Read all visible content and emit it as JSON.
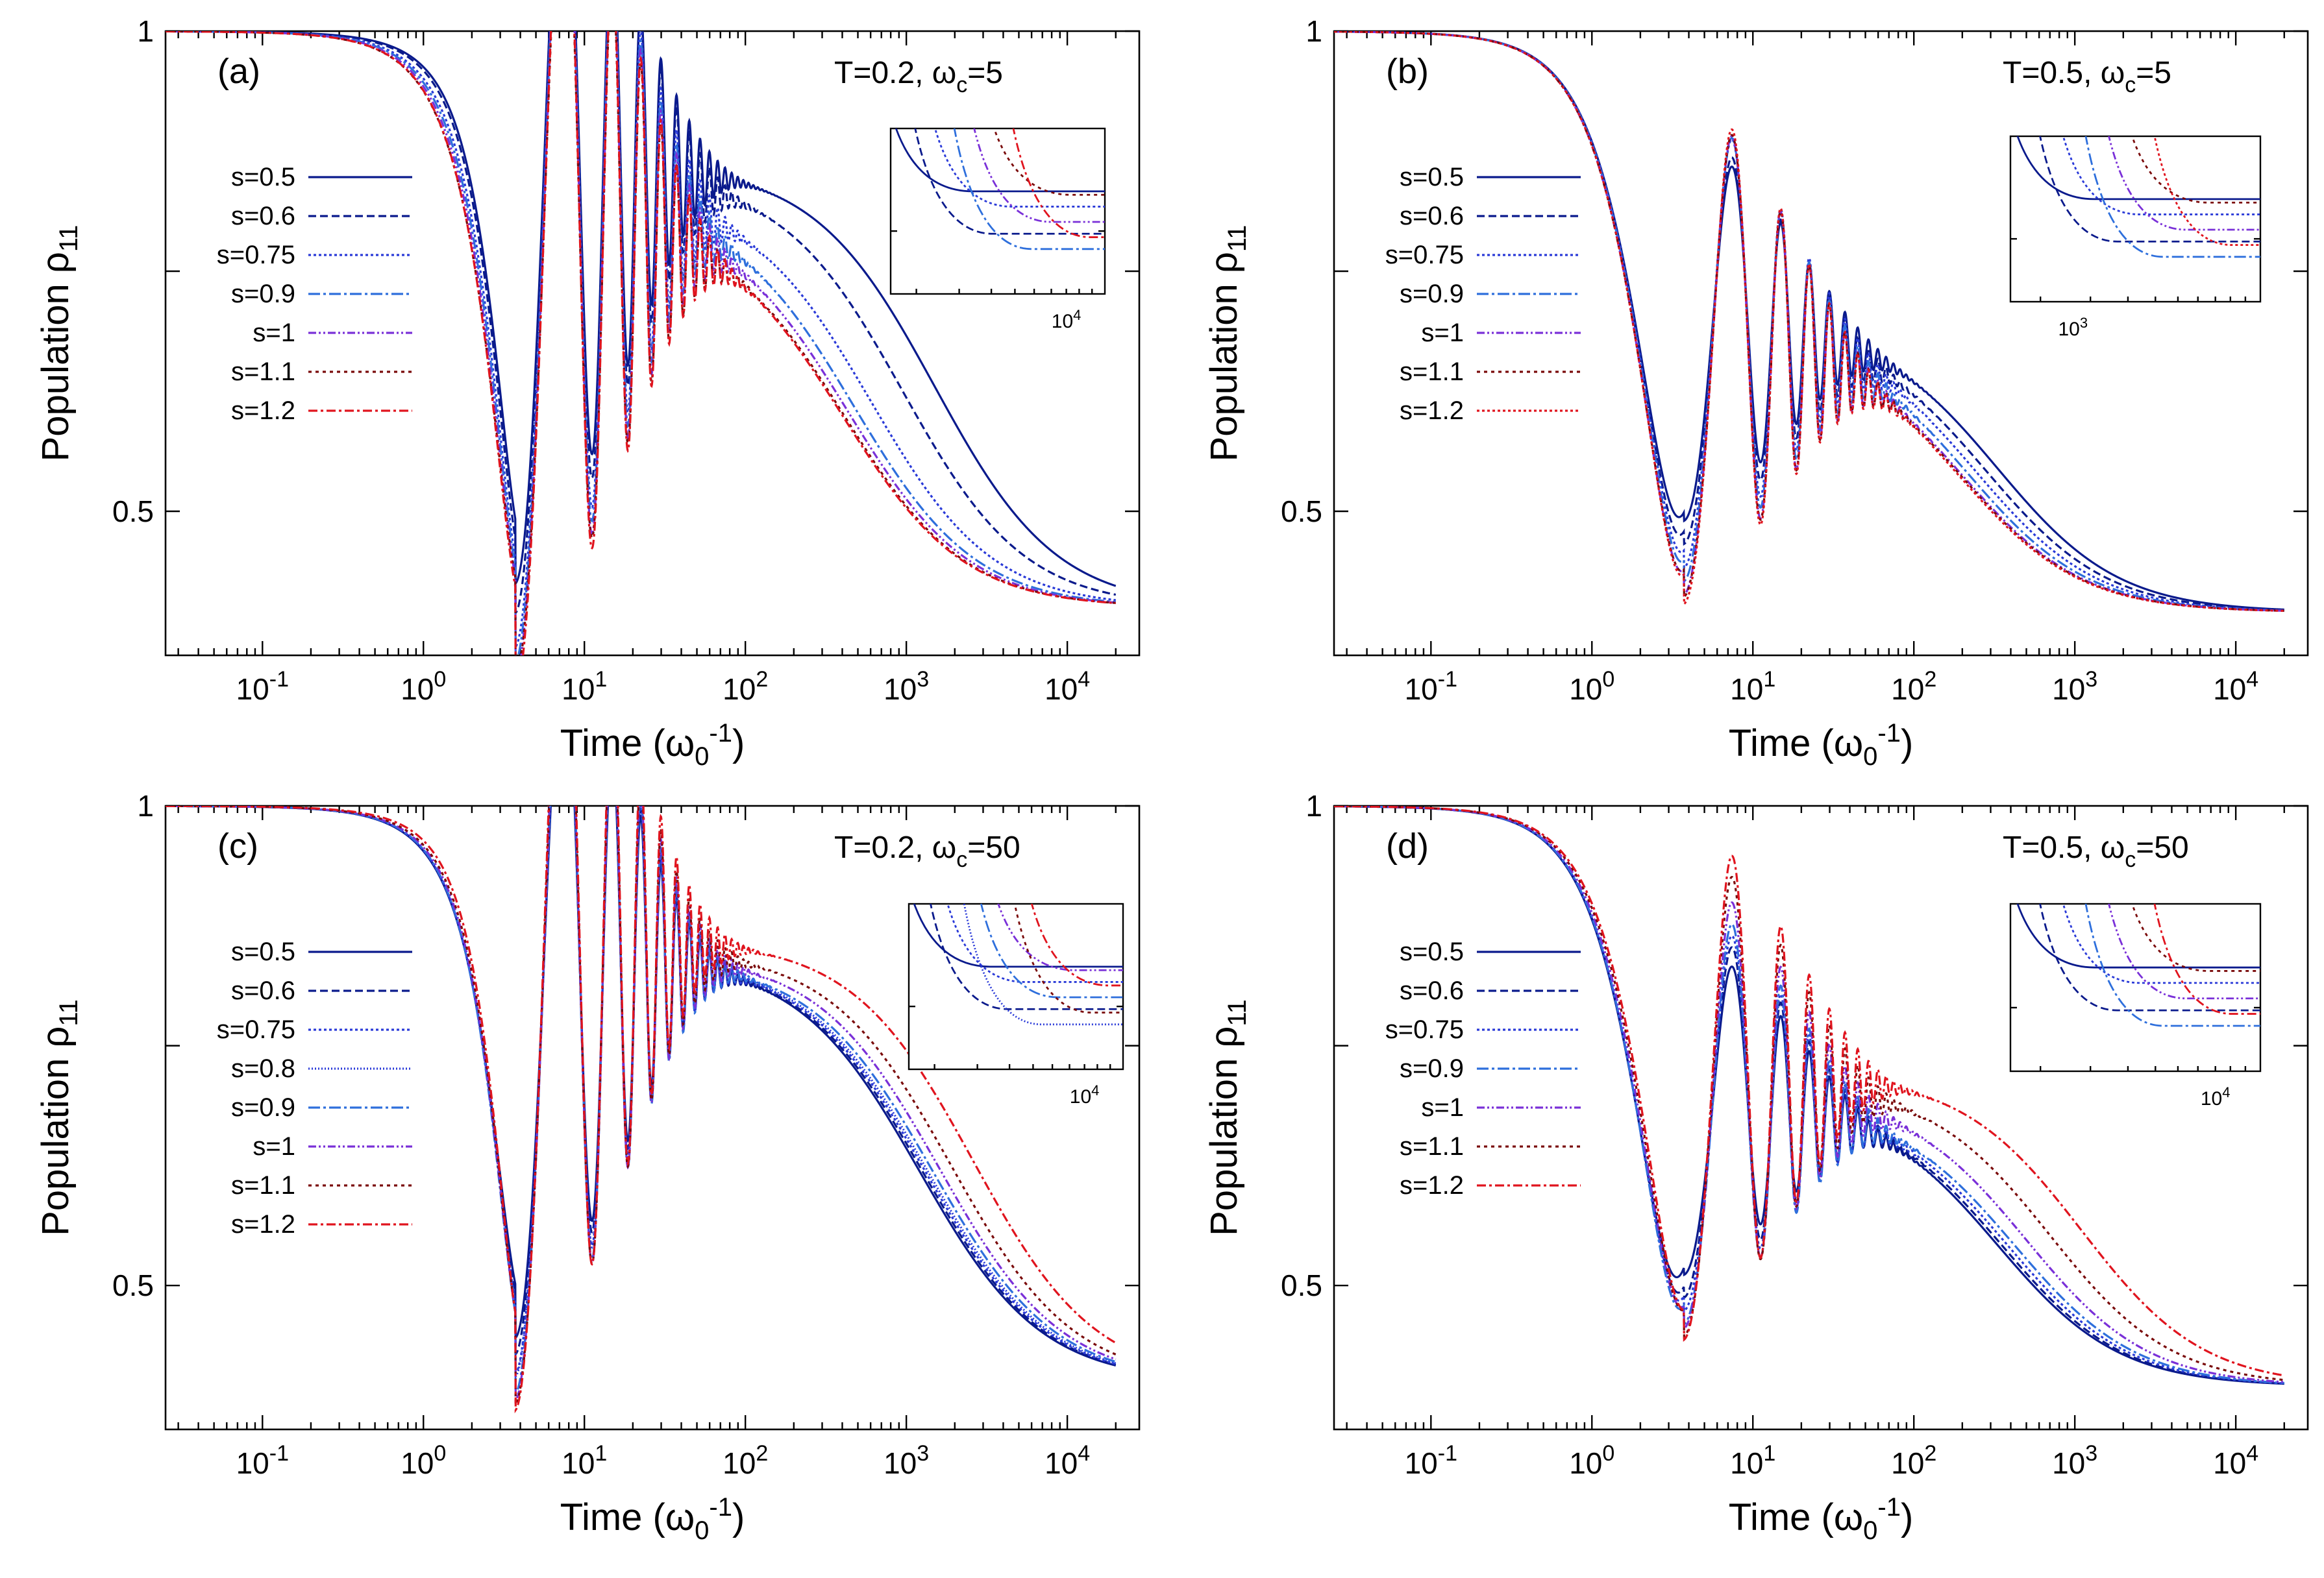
{
  "chart_data": [
    {
      "type": "line",
      "panel": "(a)",
      "annotation": "T=0.2,  ωc=5",
      "ann_T": "T=0.2,",
      "ann_omega": "ω",
      "ann_sub": "c",
      "ann_val": "=5",
      "xlabel": "Time (ω0-1)",
      "ylabel": "Population ρ11",
      "xscale": "log",
      "xlim": [
        0.025,
        28000
      ],
      "ylim": [
        0.35,
        1.0
      ],
      "yticks": [
        "0.5",
        "1"
      ],
      "xticks": [
        "10-1",
        "100",
        "101",
        "102",
        "103",
        "104"
      ],
      "final_value": 0.4,
      "series": [
        {
          "name": "s=0.5",
          "color": "#0a1a8c",
          "dash": "solid",
          "t_half": 1500,
          "dip": 0.49,
          "osc_amp": 0.22,
          "plateau": 0.86
        },
        {
          "name": "s=0.6",
          "color": "#0a1a8c",
          "dash": "12,6",
          "t_half": 950,
          "dip": 0.47,
          "osc_amp": 0.25,
          "plateau": 0.85
        },
        {
          "name": "s=0.75",
          "color": "#2a3ad8",
          "dash": "4,4",
          "t_half": 600,
          "dip": 0.45,
          "osc_amp": 0.3,
          "plateau": 0.83
        },
        {
          "name": "s=0.9",
          "color": "#2e6fdc",
          "dash": "18,5,4,5",
          "t_half": 470,
          "dip": 0.44,
          "osc_amp": 0.32,
          "plateau": 0.82
        },
        {
          "name": "s=1",
          "color": "#7a30d8",
          "dash": "12,4,3,4,3,4",
          "t_half": 430,
          "dip": 0.43,
          "osc_amp": 0.34,
          "plateau": 0.81
        },
        {
          "name": "s=1.1",
          "color": "#7a0a0a",
          "dash": "5,6",
          "t_half": 410,
          "dip": 0.43,
          "osc_amp": 0.35,
          "plateau": 0.8
        },
        {
          "name": "s=1.2",
          "color": "#e0141e",
          "dash": "14,5,4,5",
          "t_half": 400,
          "dip": 0.42,
          "osc_amp": 0.36,
          "plateau": 0.8
        }
      ],
      "inset_tick": "104"
    },
    {
      "type": "line",
      "panel": "(b)",
      "annotation": "T=0.5,  ωc=5",
      "ann_T": "T=0.5,",
      "ann_omega": "ω",
      "ann_sub": "c",
      "ann_val": "=5",
      "xlabel": "Time (ω0-1)",
      "ylabel": "Population ρ11",
      "xscale": "log",
      "xlim": [
        0.025,
        28000
      ],
      "ylim": [
        0.35,
        1.0
      ],
      "yticks": [
        "0.5",
        "1"
      ],
      "xticks": [
        "10-1",
        "100",
        "101",
        "102",
        "103",
        "104"
      ],
      "final_value": 0.395,
      "series": [
        {
          "name": "s=0.5",
          "color": "#0a1a8c",
          "dash": "solid",
          "t_half": 330,
          "dip": 0.5,
          "osc_amp": 0.06,
          "plateau": 0.695
        },
        {
          "name": "s=0.6",
          "color": "#0a1a8c",
          "dash": "12,6",
          "t_half": 280,
          "dip": 0.48,
          "osc_amp": 0.08,
          "plateau": 0.69
        },
        {
          "name": "s=0.75",
          "color": "#2a3ad8",
          "dash": "4,4",
          "t_half": 240,
          "dip": 0.46,
          "osc_amp": 0.1,
          "plateau": 0.69
        },
        {
          "name": "s=0.9",
          "color": "#2e6fdc",
          "dash": "18,5,4,5",
          "t_half": 215,
          "dip": 0.45,
          "osc_amp": 0.12,
          "plateau": 0.685
        },
        {
          "name": "s=1",
          "color": "#7a30d8",
          "dash": "12,4,3,4,3,4",
          "t_half": 200,
          "dip": 0.44,
          "osc_amp": 0.14,
          "plateau": 0.68
        },
        {
          "name": "s=1.1",
          "color": "#7a0a0a",
          "dash": "5,6",
          "t_half": 195,
          "dip": 0.44,
          "osc_amp": 0.15,
          "plateau": 0.68
        },
        {
          "name": "s=1.2",
          "color": "#e0141e",
          "dash": "4,4",
          "t_half": 190,
          "dip": 0.435,
          "osc_amp": 0.16,
          "plateau": 0.68
        }
      ],
      "inset_tick": "103"
    },
    {
      "type": "line",
      "panel": "(c)",
      "annotation": "T=0.2,  ωc=50",
      "ann_T": "T=0.2,",
      "ann_omega": "ω",
      "ann_sub": "c",
      "ann_val": "=50",
      "xlabel": "Time (ω0-1)",
      "ylabel": "Population ρ11",
      "xscale": "log",
      "xlim": [
        0.025,
        28000
      ],
      "ylim": [
        0.35,
        1.0
      ],
      "yticks": [
        "0.5",
        "1"
      ],
      "xticks": [
        "10-1",
        "100",
        "101",
        "102",
        "103",
        "104"
      ],
      "final_value": 0.4,
      "series": [
        {
          "name": "s=0.5",
          "color": "#0a1a8c",
          "dash": "solid",
          "t_half": 1200,
          "dip": 0.5,
          "osc_amp": 0.2,
          "plateau": 0.84
        },
        {
          "name": "s=0.6",
          "color": "#0a1a8c",
          "dash": "12,6",
          "t_half": 1250,
          "dip": 0.49,
          "osc_amp": 0.22,
          "plateau": 0.84
        },
        {
          "name": "s=0.75",
          "color": "#2a3ad8",
          "dash": "4,4",
          "t_half": 1300,
          "dip": 0.48,
          "osc_amp": 0.25,
          "plateau": 0.84
        },
        {
          "name": "s=0.8",
          "color": "#2a3ad8",
          "dash": "2,3",
          "t_half": 1350,
          "dip": 0.48,
          "osc_amp": 0.26,
          "plateau": 0.84
        },
        {
          "name": "s=0.9",
          "color": "#2e6fdc",
          "dash": "18,5,4,5",
          "t_half": 1450,
          "dip": 0.47,
          "osc_amp": 0.28,
          "plateau": 0.84
        },
        {
          "name": "s=1",
          "color": "#7a30d8",
          "dash": "12,4,3,4,3,4",
          "t_half": 1600,
          "dip": 0.47,
          "osc_amp": 0.3,
          "plateau": 0.845
        },
        {
          "name": "s=1.1",
          "color": "#7a0a0a",
          "dash": "5,6",
          "t_half": 1900,
          "dip": 0.47,
          "osc_amp": 0.31,
          "plateau": 0.85
        },
        {
          "name": "s=1.2",
          "color": "#e0141e",
          "dash": "14,5,4,5",
          "t_half": 2600,
          "dip": 0.47,
          "osc_amp": 0.32,
          "plateau": 0.86
        }
      ],
      "inset_tick": "104"
    },
    {
      "type": "line",
      "panel": "(d)",
      "annotation": "T=0.5,  ωc=50",
      "ann_T": "T=0.5,",
      "ann_omega": "ω",
      "ann_sub": "c",
      "ann_val": "=50",
      "xlabel": "Time (ω0-1)",
      "ylabel": "Population ρ11",
      "xscale": "log",
      "xlim": [
        0.025,
        28000
      ],
      "ylim": [
        0.35,
        1.0
      ],
      "yticks": [
        "0.5",
        "1"
      ],
      "xticks": [
        "10-1",
        "100",
        "101",
        "102",
        "103",
        "104"
      ],
      "final_value": 0.395,
      "series": [
        {
          "name": "s=0.5",
          "color": "#0a1a8c",
          "dash": "solid",
          "t_half": 330,
          "dip": 0.52,
          "osc_amp": 0.06,
          "plateau": 0.69
        },
        {
          "name": "s=0.6",
          "color": "#0a1a8c",
          "dash": "12,6",
          "t_half": 350,
          "dip": 0.5,
          "osc_amp": 0.08,
          "plateau": 0.69
        },
        {
          "name": "s=0.75",
          "color": "#2a3ad8",
          "dash": "4,4",
          "t_half": 380,
          "dip": 0.49,
          "osc_amp": 0.1,
          "plateau": 0.69
        },
        {
          "name": "s=0.9",
          "color": "#2e6fdc",
          "dash": "18,5,4,5",
          "t_half": 420,
          "dip": 0.48,
          "osc_amp": 0.12,
          "plateau": 0.69
        },
        {
          "name": "s=1",
          "color": "#7a30d8",
          "dash": "12,4,3,4,3,4",
          "t_half": 500,
          "dip": 0.48,
          "osc_amp": 0.14,
          "plateau": 0.7
        },
        {
          "name": "s=1.1",
          "color": "#7a0a0a",
          "dash": "5,6",
          "t_half": 700,
          "dip": 0.475,
          "osc_amp": 0.15,
          "plateau": 0.71
        },
        {
          "name": "s=1.2",
          "color": "#e0141e",
          "dash": "14,5,4,5",
          "t_half": 1100,
          "dip": 0.475,
          "osc_amp": 0.16,
          "plateau": 0.72
        }
      ],
      "inset_tick": "104"
    }
  ]
}
